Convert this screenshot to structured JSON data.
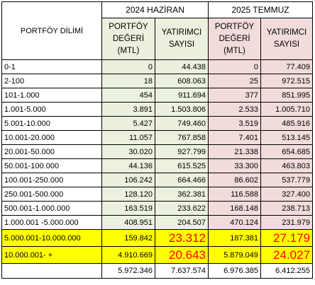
{
  "table": {
    "header": {
      "label": "PORTFÖY DİLİMİ",
      "groups": [
        "2024 HAZİRAN",
        "2025 TEMMUZ"
      ],
      "subheaders": [
        "PORTFÖY DEĞERİ (MTL)",
        "YATIRIMCI SAYISI",
        "PORTFÖY DEĞERİ (MTL)",
        "YATIRIMCI SAYISI"
      ]
    },
    "rows": [
      [
        "0-1",
        "0",
        "44.438",
        "0",
        "77.409"
      ],
      [
        "2-100",
        "18",
        "608.063",
        "25",
        "972.515"
      ],
      [
        "101-1.000",
        "454",
        "911.694",
        "377",
        "851.995"
      ],
      [
        "1.001-5.000",
        "3.891",
        "1.503.806",
        "2.533",
        "1.005.710"
      ],
      [
        "5.001-10.000",
        "5.427",
        "749.460",
        "3.519",
        "485.916"
      ],
      [
        "10.001-20.000",
        "11.057",
        "767.858",
        "7.401",
        "513.145"
      ],
      [
        "20.001-50.000",
        "30.020",
        "927.799",
        "21.338",
        "654.685"
      ],
      [
        "50.001-100.000",
        "44.136",
        "615.525",
        "33.300",
        "463.803"
      ],
      [
        "100.001-250.000",
        "106.242",
        "664.466",
        "86.602",
        "537.779"
      ],
      [
        "250.001-500.000",
        "128.120",
        "362.381",
        "116.588",
        "327.400"
      ],
      [
        "500.001-1.000.000",
        "163.519",
        "233.622",
        "168.148",
        "238.713"
      ],
      [
        "1.000.001 -5.000.000",
        "408.951",
        "204.507",
        "470.124",
        "231.979"
      ],
      [
        "5.000.001-10.000.000",
        "159.842",
        "23.312",
        "187.381",
        "27.179"
      ],
      [
        "10.000.001- +",
        "4.910.669",
        "20.643",
        "5.879.049",
        "24.027"
      ]
    ],
    "totals": [
      "5.972.346",
      "7.637.574",
      "6.976.385",
      "6.412.255"
    ]
  }
}
